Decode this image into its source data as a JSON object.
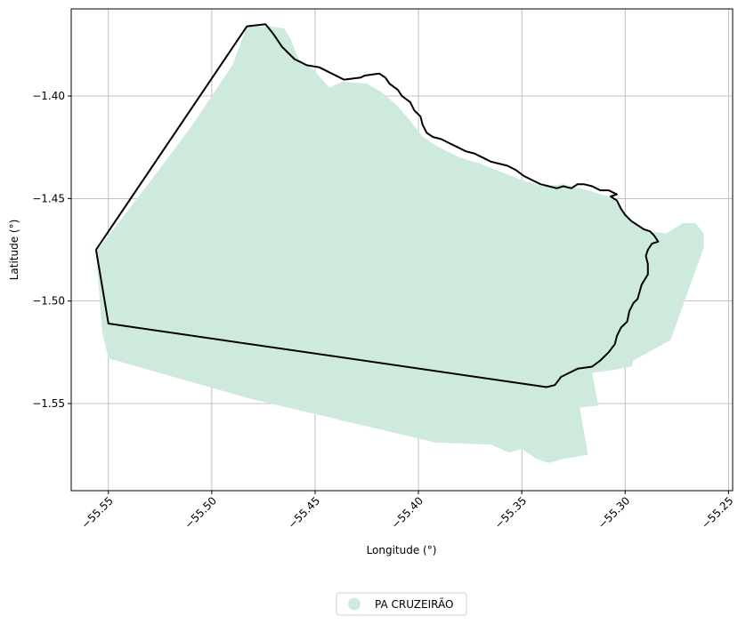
{
  "chart_data": {
    "type": "map",
    "xlabel": "Longitude (°)",
    "ylabel": "Latitude (°)",
    "xlim": [
      -55.568,
      -55.248
    ],
    "ylim": [
      -1.5925,
      -1.3575
    ],
    "x_ticks": [
      {
        "value": -55.55,
        "label": "−55.55"
      },
      {
        "value": -55.5,
        "label": "−55.50"
      },
      {
        "value": -55.45,
        "label": "−55.45"
      },
      {
        "value": -55.4,
        "label": "−55.40"
      },
      {
        "value": -55.35,
        "label": "−55.35"
      },
      {
        "value": -55.3,
        "label": "−55.30"
      },
      {
        "value": -55.25,
        "label": "−55.25"
      }
    ],
    "y_ticks": [
      {
        "value": -1.4,
        "label": "−1.40"
      },
      {
        "value": -1.45,
        "label": "−1.45"
      },
      {
        "value": -1.5,
        "label": "−1.50"
      },
      {
        "value": -1.55,
        "label": "−1.55"
      }
    ],
    "grid": true,
    "legend": {
      "placement": "bottom-center",
      "entries": [
        {
          "label": "PA CRUZEIRÃO",
          "color": "#cdeadc"
        }
      ]
    },
    "colors": {
      "fill": "#cdeadc",
      "boundary": "#000000",
      "grid": "#b0b0b0"
    },
    "filled_region": [
      [
        -55.472,
        -1.366
      ],
      [
        -55.465,
        -1.367
      ],
      [
        -55.462,
        -1.372
      ],
      [
        -55.458,
        -1.382
      ],
      [
        -55.451,
        -1.387
      ],
      [
        -55.443,
        -1.396
      ],
      [
        -55.437,
        -1.393
      ],
      [
        -55.425,
        -1.394
      ],
      [
        -55.418,
        -1.398
      ],
      [
        -55.41,
        -1.405
      ],
      [
        -55.404,
        -1.412
      ],
      [
        -55.398,
        -1.42
      ],
      [
        -55.39,
        -1.425
      ],
      [
        -55.38,
        -1.43
      ],
      [
        -55.37,
        -1.433
      ],
      [
        -55.36,
        -1.437
      ],
      [
        -55.35,
        -1.441
      ],
      [
        -55.34,
        -1.444
      ],
      [
        -55.33,
        -1.443
      ],
      [
        -55.318,
        -1.446
      ],
      [
        -55.305,
        -1.45
      ],
      [
        -55.298,
        -1.46
      ],
      [
        -55.289,
        -1.466
      ],
      [
        -55.28,
        -1.467
      ],
      [
        -55.272,
        -1.462
      ],
      [
        -55.266,
        -1.462
      ],
      [
        -55.262,
        -1.467
      ],
      [
        -55.262,
        -1.474
      ],
      [
        -55.278,
        -1.519
      ],
      [
        -55.296,
        -1.529
      ],
      [
        -55.297,
        -1.532
      ],
      [
        -55.308,
        -1.534
      ],
      [
        -55.316,
        -1.535
      ],
      [
        -55.313,
        -1.551
      ],
      [
        -55.322,
        -1.552
      ],
      [
        -55.318,
        -1.575
      ],
      [
        -55.33,
        -1.577
      ],
      [
        -55.337,
        -1.579
      ],
      [
        -55.343,
        -1.577
      ],
      [
        -55.35,
        -1.572
      ],
      [
        -55.356,
        -1.574
      ],
      [
        -55.365,
        -1.57
      ],
      [
        -55.392,
        -1.569
      ],
      [
        -55.4,
        -1.567
      ],
      [
        -55.48,
        -1.548
      ],
      [
        -55.55,
        -1.528
      ],
      [
        -55.553,
        -1.515
      ],
      [
        -55.556,
        -1.476
      ],
      [
        -55.53,
        -1.442
      ],
      [
        -55.51,
        -1.415
      ],
      [
        -55.49,
        -1.385
      ],
      [
        -55.483,
        -1.366
      ]
    ],
    "boundary_line": [
      [
        -55.556,
        -1.475
      ],
      [
        -55.483,
        -1.366
      ],
      [
        -55.474,
        -1.365
      ],
      [
        -55.47,
        -1.37
      ],
      [
        -55.466,
        -1.376
      ],
      [
        -55.46,
        -1.382
      ],
      [
        -55.454,
        -1.385
      ],
      [
        -55.448,
        -1.386
      ],
      [
        -55.442,
        -1.389
      ],
      [
        -55.436,
        -1.392
      ],
      [
        -55.428,
        -1.391
      ],
      [
        -55.426,
        -1.39
      ],
      [
        -55.419,
        -1.389
      ],
      [
        -55.416,
        -1.391
      ],
      [
        -55.414,
        -1.394
      ],
      [
        -55.41,
        -1.397
      ],
      [
        -55.408,
        -1.4
      ],
      [
        -55.404,
        -1.403
      ],
      [
        -55.402,
        -1.407
      ],
      [
        -55.399,
        -1.41
      ],
      [
        -55.398,
        -1.414
      ],
      [
        -55.396,
        -1.418
      ],
      [
        -55.393,
        -1.42
      ],
      [
        -55.389,
        -1.421
      ],
      [
        -55.385,
        -1.423
      ],
      [
        -55.381,
        -1.425
      ],
      [
        -55.377,
        -1.427
      ],
      [
        -55.373,
        -1.428
      ],
      [
        -55.369,
        -1.43
      ],
      [
        -55.365,
        -1.432
      ],
      [
        -55.361,
        -1.433
      ],
      [
        -55.357,
        -1.434
      ],
      [
        -55.353,
        -1.436
      ],
      [
        -55.349,
        -1.439
      ],
      [
        -55.345,
        -1.441
      ],
      [
        -55.341,
        -1.443
      ],
      [
        -55.337,
        -1.444
      ],
      [
        -55.333,
        -1.445
      ],
      [
        -55.33,
        -1.444
      ],
      [
        -55.326,
        -1.445
      ],
      [
        -55.323,
        -1.443
      ],
      [
        -55.32,
        -1.443
      ],
      [
        -55.316,
        -1.444
      ],
      [
        -55.312,
        -1.446
      ],
      [
        -55.308,
        -1.446
      ],
      [
        -55.304,
        -1.448
      ],
      [
        -55.307,
        -1.449
      ],
      [
        -55.304,
        -1.451
      ],
      [
        -55.302,
        -1.455
      ],
      [
        -55.3,
        -1.458
      ],
      [
        -55.297,
        -1.461
      ],
      [
        -55.294,
        -1.463
      ],
      [
        -55.291,
        -1.465
      ],
      [
        -55.288,
        -1.466
      ],
      [
        -55.286,
        -1.468
      ],
      [
        -55.284,
        -1.471
      ],
      [
        -55.287,
        -1.472
      ],
      [
        -55.289,
        -1.475
      ],
      [
        -55.29,
        -1.478
      ],
      [
        -55.289,
        -1.482
      ],
      [
        -55.289,
        -1.487
      ],
      [
        -55.292,
        -1.492
      ],
      [
        -55.294,
        -1.499
      ],
      [
        -55.296,
        -1.501
      ],
      [
        -55.298,
        -1.505
      ],
      [
        -55.299,
        -1.51
      ],
      [
        -55.302,
        -1.513
      ],
      [
        -55.304,
        -1.517
      ],
      [
        -55.305,
        -1.521
      ],
      [
        -55.308,
        -1.525
      ],
      [
        -55.312,
        -1.529
      ],
      [
        -55.316,
        -1.532
      ],
      [
        -55.323,
        -1.533
      ],
      [
        -55.327,
        -1.535
      ],
      [
        -55.331,
        -1.537
      ],
      [
        -55.334,
        -1.541
      ],
      [
        -55.338,
        -1.542
      ],
      [
        -55.55,
        -1.511
      ],
      [
        -55.556,
        -1.475
      ]
    ]
  }
}
